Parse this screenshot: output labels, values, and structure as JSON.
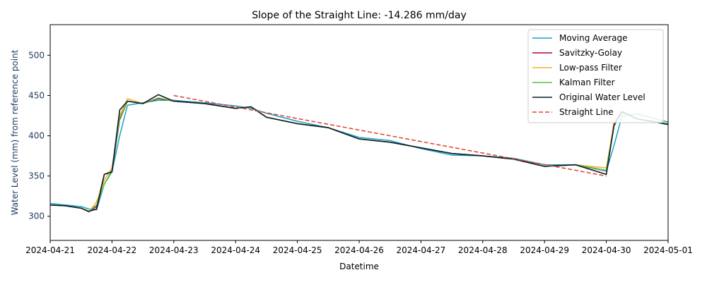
{
  "chart_data": {
    "type": "line",
    "title": "Slope of the Straight Line: -14.286 mm/day",
    "xlabel": "Datetime",
    "ylabel": "Water Level (mm) from reference point",
    "xlim": [
      "2024-04-21",
      "2024-05-01"
    ],
    "ylim": [
      270,
      538
    ],
    "x_ticks": [
      "2024-04-21",
      "2024-04-22",
      "2024-04-23",
      "2024-04-24",
      "2024-04-25",
      "2024-04-26",
      "2024-04-27",
      "2024-04-28",
      "2024-04-29",
      "2024-04-30",
      "2024-05-01"
    ],
    "y_ticks": [
      300,
      350,
      400,
      450,
      500
    ],
    "legend_position": "top-right",
    "grid": false,
    "x": [
      "2024-04-21 00:00",
      "2024-04-21 06:00",
      "2024-04-21 12:00",
      "2024-04-21 15:00",
      "2024-04-21 18:00",
      "2024-04-21 21:00",
      "2024-04-22 00:00",
      "2024-04-22 03:00",
      "2024-04-22 06:00",
      "2024-04-22 12:00",
      "2024-04-22 18:00",
      "2024-04-23 00:00",
      "2024-04-23 12:00",
      "2024-04-24 00:00",
      "2024-04-24 06:00",
      "2024-04-24 12:00",
      "2024-04-25 00:00",
      "2024-04-25 12:00",
      "2024-04-26 00:00",
      "2024-04-26 12:00",
      "2024-04-27 00:00",
      "2024-04-27 12:00",
      "2024-04-28 00:00",
      "2024-04-28 12:00",
      "2024-04-29 00:00",
      "2024-04-29 12:00",
      "2024-04-30 00:00",
      "2024-04-30 03:00",
      "2024-04-30 06:00",
      "2024-04-30 12:00",
      "2024-05-01 00:00"
    ],
    "series": [
      {
        "name": "Moving Average",
        "color": "#17a2c9",
        "values": [
          316,
          314,
          312,
          309,
          308,
          340,
          355,
          400,
          438,
          441,
          444,
          444,
          441,
          437,
          434,
          428,
          418,
          410,
          398,
          394,
          384,
          376,
          375,
          372,
          364,
          364,
          356,
          388,
          424,
          427,
          417
        ]
      },
      {
        "name": "Savitzky-Golay",
        "color": "#b0003a",
        "values": [
          314,
          313,
          310,
          306,
          312,
          352,
          356,
          420,
          443,
          440,
          446,
          443,
          440,
          434,
          436,
          423,
          415,
          410,
          396,
          392,
          385,
          378,
          375,
          371,
          362,
          364,
          357,
          416,
          430,
          421,
          415
        ]
      },
      {
        "name": "Low-pass Filter",
        "color": "#f4b224",
        "values": [
          314,
          313,
          310,
          305,
          318,
          345,
          360,
          425,
          446,
          440,
          447,
          443,
          440,
          434,
          436,
          423,
          415,
          410,
          396,
          392,
          385,
          378,
          375,
          371,
          362,
          364,
          360,
          415,
          430,
          421,
          415
        ]
      },
      {
        "name": "Kalman Filter",
        "color": "#5ac13a",
        "values": [
          314,
          313,
          310,
          306,
          314,
          340,
          357,
          422,
          443,
          440,
          447,
          443,
          440,
          434,
          436,
          423,
          415,
          410,
          396,
          392,
          385,
          378,
          375,
          371,
          362,
          364,
          357,
          412,
          429,
          421,
          415
        ]
      },
      {
        "name": "Original Water Level",
        "color": "#0d1b2a",
        "values": [
          314,
          313,
          310,
          306,
          309,
          352,
          355,
          432,
          443,
          440,
          451,
          443,
          440,
          434,
          436,
          423,
          415,
          410,
          396,
          392,
          385,
          378,
          375,
          371,
          362,
          364,
          352,
          413,
          430,
          421,
          414
        ]
      },
      {
        "name": "Straight Line",
        "color": "#e0402f",
        "dashed": true,
        "x": [
          "2024-04-23 00:00",
          "2024-04-30 00:00"
        ],
        "values": [
          450,
          350
        ]
      }
    ]
  }
}
